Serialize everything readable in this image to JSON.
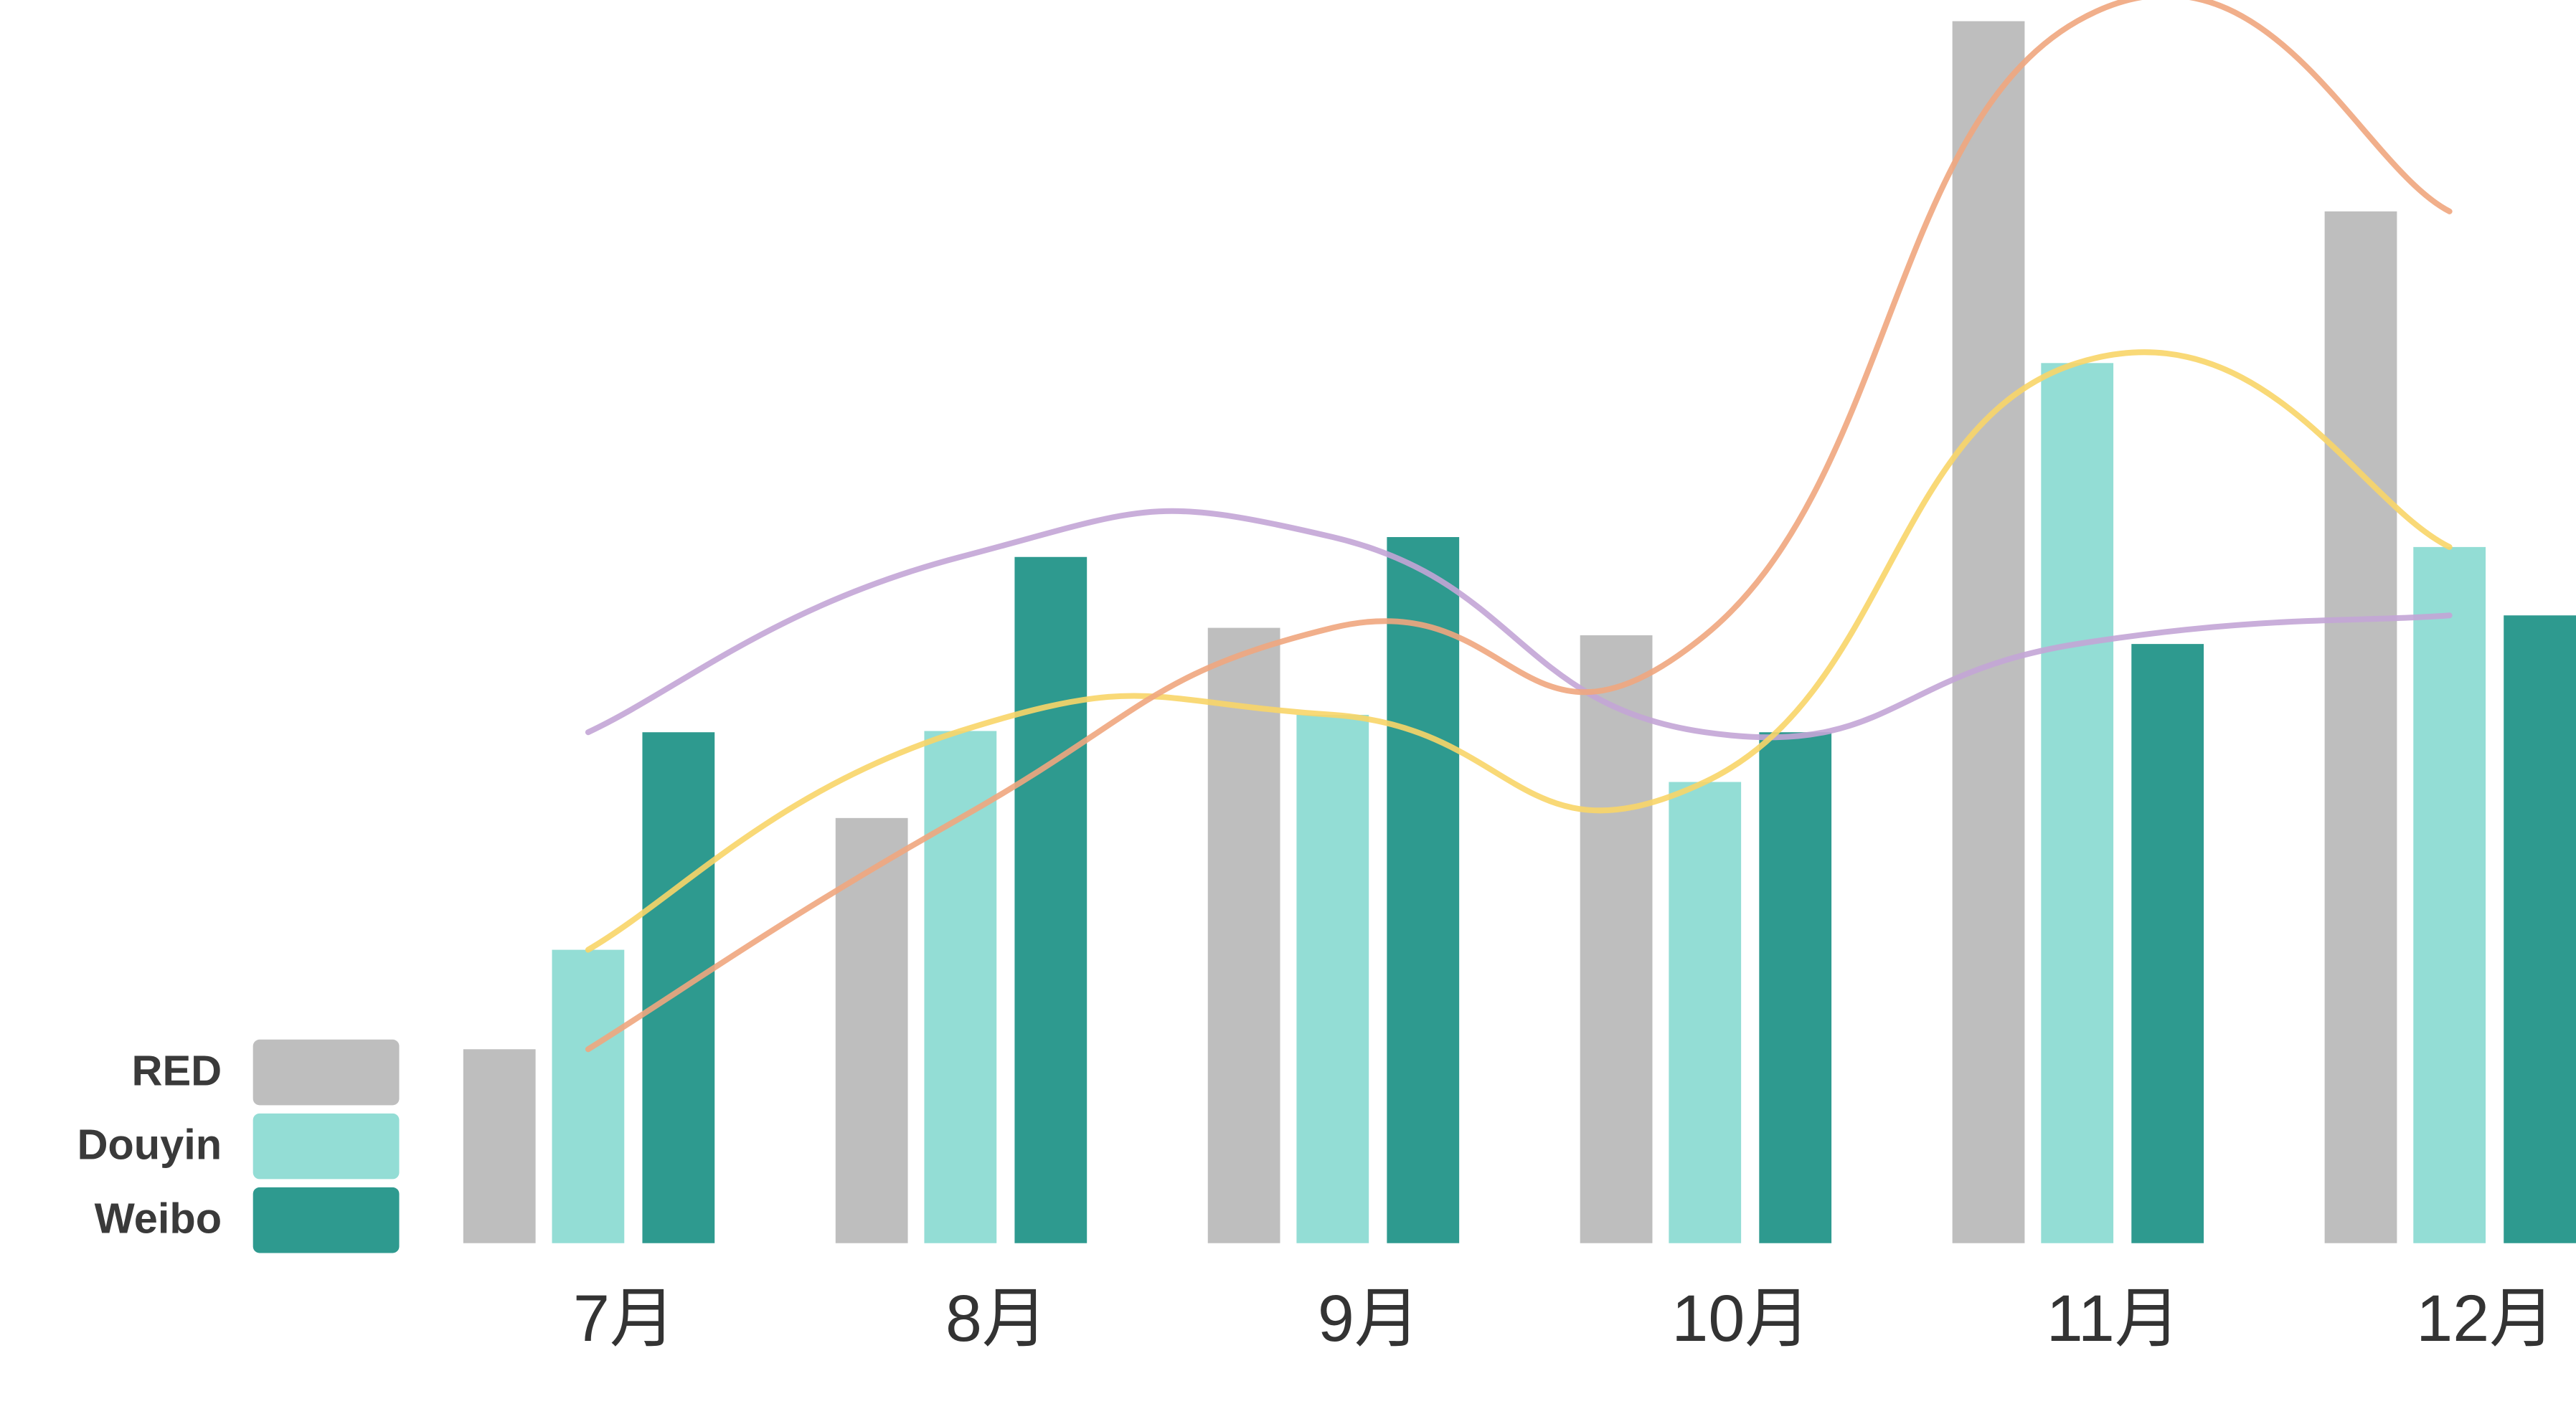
{
  "chart_data": {
    "type": "bar",
    "categories": [
      "7月",
      "8月",
      "9月",
      "10月",
      "11月",
      "12月"
    ],
    "series": [
      {
        "name": "RED",
        "color": "#bebebe",
        "line_color": "#f0a67e",
        "values": [
          15.6,
          34.2,
          49.5,
          48.9,
          98.3,
          83.0
        ]
      },
      {
        "name": "Douyin",
        "color": "#93ddd5",
        "line_color": "#f8d568",
        "values": [
          23.6,
          41.2,
          42.5,
          37.1,
          70.8,
          56.0
        ]
      },
      {
        "name": "Weibo",
        "color": "#2e9a8f",
        "line_color": "#c3a5d6",
        "values": [
          41.1,
          55.2,
          56.8,
          41.1,
          48.2,
          50.5
        ]
      }
    ],
    "ylim": [
      0,
      100
    ],
    "smooth_lines": true,
    "legend": "bottom-left"
  }
}
